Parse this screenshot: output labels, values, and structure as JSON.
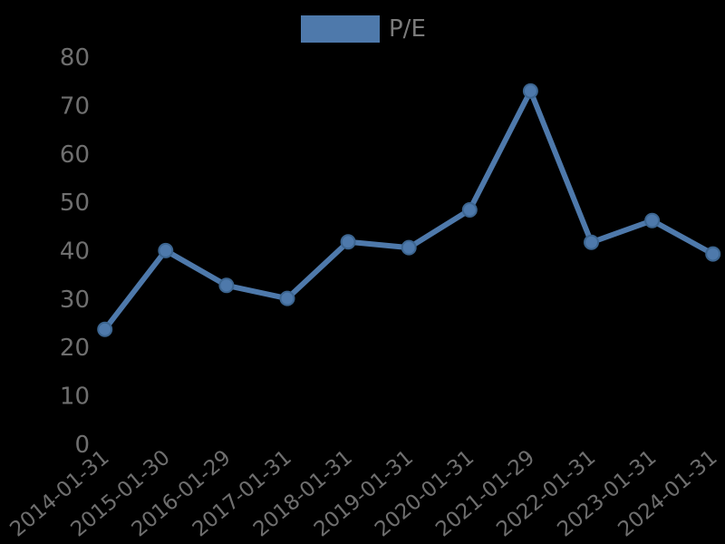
{
  "background_color": "#000000",
  "legend": {
    "label": "P/E",
    "swatch_color": "#4e79ab"
  },
  "colors": {
    "line": "#4e79ab",
    "marker_stroke": "#3c6590",
    "axis_label": "#6f6f6f",
    "legend_label": "#7b7b7b"
  },
  "chart_data": {
    "type": "line",
    "title": "",
    "xlabel": "",
    "ylabel": "",
    "x": [
      "2014-01-31",
      "2015-01-30",
      "2016-01-29",
      "2017-01-31",
      "2018-01-31",
      "2019-01-31",
      "2020-01-31",
      "2021-01-29",
      "2022-01-31",
      "2023-01-31",
      "2024-01-31"
    ],
    "series": [
      {
        "name": "P/E",
        "color": "#4e79ab",
        "values": [
          23.7,
          40.0,
          32.8,
          30.1,
          41.8,
          40.6,
          48.4,
          73.0,
          41.7,
          46.2,
          39.3
        ]
      }
    ],
    "ylim": [
      0,
      80
    ],
    "yticks": [
      0,
      10,
      20,
      30,
      40,
      50,
      60,
      70,
      80
    ],
    "grid": false,
    "legend_position": "top-center",
    "x_label_rotation_deg": 40
  }
}
